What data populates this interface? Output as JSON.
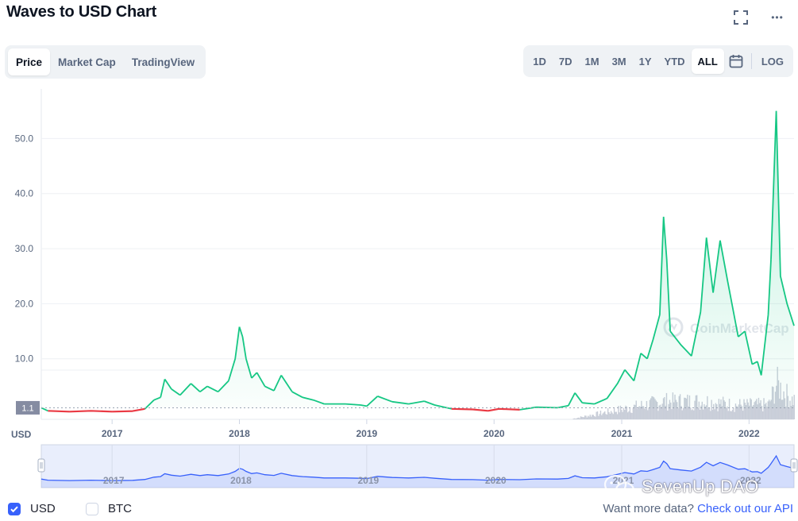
{
  "header": {
    "title": "Waves to USD Chart",
    "icons": [
      "fullscreen-icon",
      "more-icon"
    ],
    "more_glyph": "•••"
  },
  "tabs": [
    {
      "label": "Price",
      "active": true
    },
    {
      "label": "Market Cap",
      "active": false
    },
    {
      "label": "TradingView",
      "active": false
    }
  ],
  "ranges": [
    {
      "label": "1D",
      "active": false
    },
    {
      "label": "7D",
      "active": false
    },
    {
      "label": "1M",
      "active": false
    },
    {
      "label": "3M",
      "active": false
    },
    {
      "label": "1Y",
      "active": false
    },
    {
      "label": "YTD",
      "active": false
    },
    {
      "label": "ALL",
      "active": true
    }
  ],
  "scale_toggle": "LOG",
  "chart_data": {
    "type": "area",
    "x_tick_labels": [
      "2017",
      "2018",
      "2019",
      "2020",
      "2021",
      "2022"
    ],
    "y_tick_labels": [
      "10.0",
      "20.0",
      "30.0",
      "40.0",
      "50.0"
    ],
    "y_ticks": [
      10,
      20,
      30,
      40,
      50
    ],
    "ylim": [
      -1,
      59
    ],
    "xlim": [
      "2016-06-12",
      "2022-05-10"
    ],
    "currency_label": "USD",
    "start_price_label": "1.1",
    "start_price": 1.1,
    "watermark": "CoinMarketCap",
    "colors": {
      "up": "#16c784",
      "down": "#ea3943",
      "volume": "#c8cdd8",
      "navigator": "#3861fb"
    },
    "series": [
      {
        "points": [
          [
            "2016-06-12",
            1.1
          ],
          [
            "2016-07-01",
            0.55
          ],
          [
            "2016-09-01",
            0.4
          ],
          [
            "2016-11-01",
            0.55
          ],
          [
            "2017-01-01",
            0.4
          ],
          [
            "2017-03-01",
            0.5
          ],
          [
            "2017-04-05",
            0.9
          ],
          [
            "2017-05-01",
            2.5
          ],
          [
            "2017-05-20",
            3.0
          ],
          [
            "2017-06-01",
            6.3
          ],
          [
            "2017-06-20",
            4.5
          ],
          [
            "2017-07-15",
            3.4
          ],
          [
            "2017-08-15",
            5.5
          ],
          [
            "2017-09-10",
            4.0
          ],
          [
            "2017-10-01",
            5.0
          ],
          [
            "2017-11-01",
            4.0
          ],
          [
            "2017-12-01",
            6.0
          ],
          [
            "2017-12-20",
            10.0
          ],
          [
            "2018-01-01",
            15.8
          ],
          [
            "2018-01-10",
            14.0
          ],
          [
            "2018-01-20",
            10.0
          ],
          [
            "2018-02-05",
            6.5
          ],
          [
            "2018-02-20",
            7.5
          ],
          [
            "2018-03-15",
            5.0
          ],
          [
            "2018-04-10",
            4.2
          ],
          [
            "2018-05-01",
            7.0
          ],
          [
            "2018-06-01",
            4.0
          ],
          [
            "2018-07-01",
            3.0
          ],
          [
            "2018-08-01",
            2.5
          ],
          [
            "2018-09-01",
            1.8
          ],
          [
            "2018-11-01",
            1.8
          ],
          [
            "2018-12-15",
            1.6
          ],
          [
            "2019-01-01",
            1.4
          ],
          [
            "2019-02-01",
            3.2
          ],
          [
            "2019-03-15",
            2.2
          ],
          [
            "2019-05-01",
            1.8
          ],
          [
            "2019-06-15",
            2.3
          ],
          [
            "2019-07-15",
            1.6
          ],
          [
            "2019-09-01",
            0.9
          ],
          [
            "2019-11-01",
            0.8
          ],
          [
            "2019-12-15",
            0.55
          ],
          [
            "2020-01-15",
            0.9
          ],
          [
            "2020-03-15",
            0.75
          ],
          [
            "2020-05-01",
            1.2
          ],
          [
            "2020-07-01",
            1.1
          ],
          [
            "2020-08-01",
            1.5
          ],
          [
            "2020-08-20",
            3.8
          ],
          [
            "2020-09-10",
            2.0
          ],
          [
            "2020-10-15",
            1.8
          ],
          [
            "2020-11-20",
            2.8
          ],
          [
            "2020-12-20",
            5.5
          ],
          [
            "2021-01-10",
            8.0
          ],
          [
            "2021-02-05",
            6.0
          ],
          [
            "2021-02-25",
            11.0
          ],
          [
            "2021-03-15",
            10.0
          ],
          [
            "2021-04-01",
            13.5
          ],
          [
            "2021-04-20",
            18.0
          ],
          [
            "2021-05-01",
            35.8
          ],
          [
            "2021-05-10",
            28.0
          ],
          [
            "2021-05-20",
            15.0
          ],
          [
            "2021-06-20",
            12.5
          ],
          [
            "2021-07-20",
            10.5
          ],
          [
            "2021-08-15",
            18.5
          ],
          [
            "2021-09-01",
            32.0
          ],
          [
            "2021-09-20",
            22.0
          ],
          [
            "2021-10-10",
            31.5
          ],
          [
            "2021-11-01",
            24.0
          ],
          [
            "2021-12-01",
            14.0
          ],
          [
            "2021-12-20",
            15.0
          ],
          [
            "2022-01-10",
            9.0
          ],
          [
            "2022-01-25",
            9.5
          ],
          [
            "2022-02-05",
            7.0
          ],
          [
            "2022-02-25",
            18.0
          ],
          [
            "2022-03-05",
            28.0
          ],
          [
            "2022-03-20",
            55.0
          ],
          [
            "2022-04-01",
            25.0
          ],
          [
            "2022-04-20",
            20.0
          ],
          [
            "2022-05-10",
            16.0
          ]
        ]
      }
    ],
    "volume": [
      [
        "2021-01-10",
        0.3
      ],
      [
        "2021-05-01",
        0.5
      ],
      [
        "2021-09-01",
        0.5
      ],
      [
        "2021-11-15",
        0.4
      ],
      [
        "2022-02-25",
        0.4
      ],
      [
        "2022-03-20",
        1.0
      ],
      [
        "2022-04-10",
        0.75
      ],
      [
        "2022-05-01",
        0.55
      ]
    ]
  },
  "navigator": {
    "x_tick_labels": [
      "2017",
      "2018",
      "2019",
      "2020",
      "2021",
      "2022"
    ]
  },
  "watermark2": "SevenUp DAO",
  "footer": {
    "usd_label": "USD",
    "btc_label": "BTC",
    "usd_checked": true,
    "btc_checked": false,
    "api_prefix": "Want more data?",
    "api_link": "Check out our API"
  }
}
